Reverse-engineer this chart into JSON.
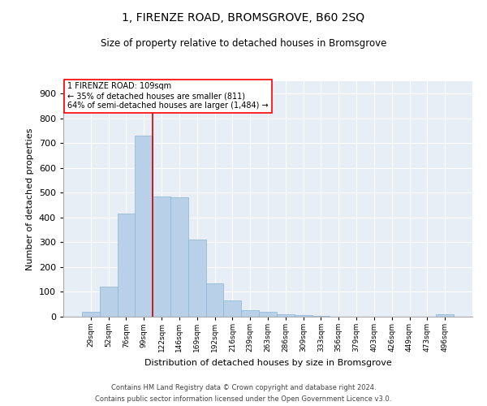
{
  "title_line1": "1, FIRENZE ROAD, BROMSGROVE, B60 2SQ",
  "title_line2": "Size of property relative to detached houses in Bromsgrove",
  "xlabel": "Distribution of detached houses by size in Bromsgrove",
  "ylabel": "Number of detached properties",
  "bar_color": "#b8d0e8",
  "bar_edge_color": "#8ab4d4",
  "background_color": "#e8eef5",
  "grid_color": "#ffffff",
  "vline_color": "#cc0000",
  "vline_x_index": 3.5,
  "annotation_text": "1 FIRENZE ROAD: 109sqm\n← 35% of detached houses are smaller (811)\n64% of semi-detached houses are larger (1,484) →",
  "categories": [
    "29sqm",
    "52sqm",
    "76sqm",
    "99sqm",
    "122sqm",
    "146sqm",
    "169sqm",
    "192sqm",
    "216sqm",
    "239sqm",
    "263sqm",
    "286sqm",
    "309sqm",
    "333sqm",
    "356sqm",
    "379sqm",
    "403sqm",
    "426sqm",
    "449sqm",
    "473sqm",
    "496sqm"
  ],
  "values": [
    20,
    120,
    415,
    730,
    485,
    480,
    310,
    135,
    65,
    27,
    20,
    10,
    5,
    2,
    0,
    0,
    0,
    0,
    0,
    0,
    10
  ],
  "ylim": [
    0,
    950
  ],
  "yticks": [
    0,
    100,
    200,
    300,
    400,
    500,
    600,
    700,
    800,
    900
  ],
  "footnote1": "Contains HM Land Registry data © Crown copyright and database right 2024.",
  "footnote2": "Contains public sector information licensed under the Open Government Licence v3.0."
}
